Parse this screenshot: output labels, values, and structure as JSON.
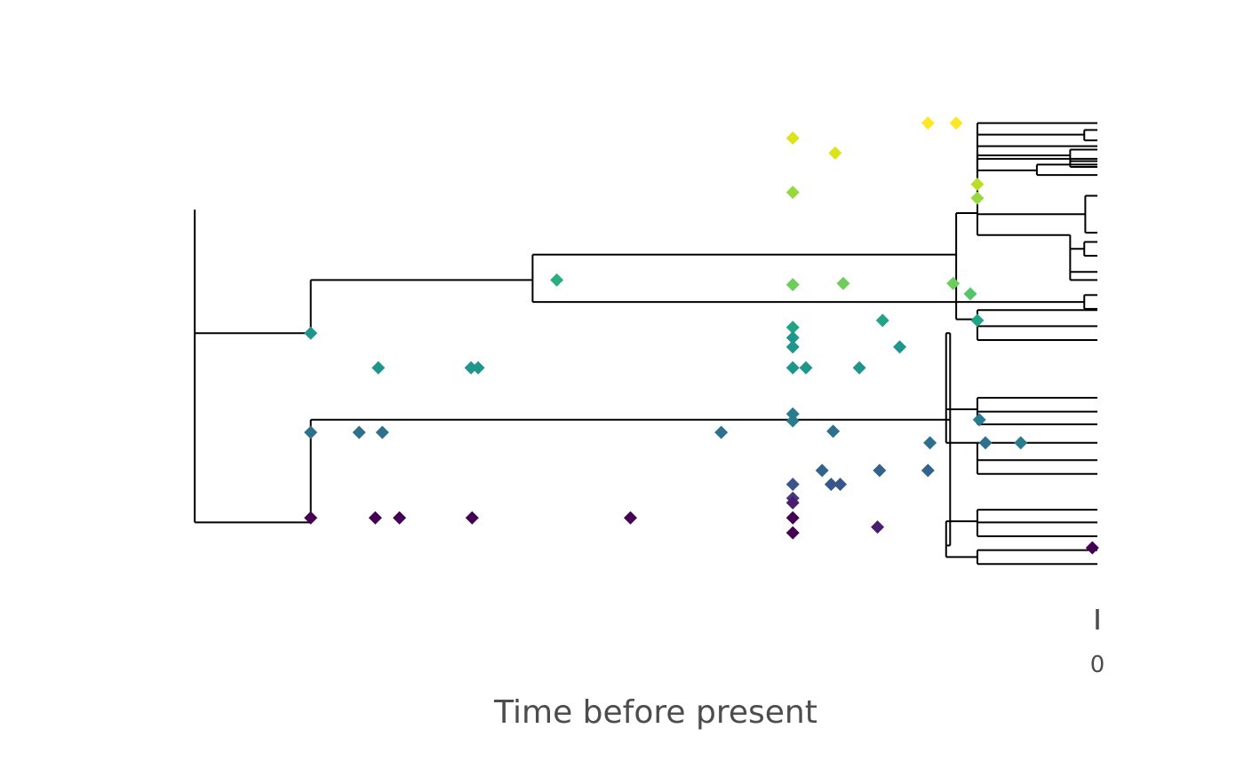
{
  "chart_data": {
    "type": "scatter",
    "subtype": "phylogenetic tree with event markers",
    "xlabel": "Time before present",
    "x_tick_labels": [
      "0"
    ],
    "x_ticks": [
      0
    ],
    "xlim": [
      -89.5,
      1.4
    ],
    "grid": false,
    "legend": "none",
    "tips_at_x": 0,
    "tree_nodes": [
      {
        "id": "root",
        "x": -89.5,
        "y": 32.3
      },
      {
        "id": "A",
        "x": -78.0,
        "y": 21.6
      },
      {
        "id": "B",
        "x": -78.0,
        "y": 5.2
      },
      {
        "id": "C",
        "x": -56.0,
        "y": 26.2
      },
      {
        "id": "D",
        "x": -14.6,
        "y": 14.1
      },
      {
        "id": "E",
        "x": -15.0,
        "y": 21.6
      },
      {
        "id": "F",
        "x": -11.9,
        "y": 15.0
      },
      {
        "id": "G",
        "x": -11.9,
        "y": 12.1
      },
      {
        "id": "H",
        "x": -15.0,
        "y": 3.2
      },
      {
        "id": "I",
        "x": -11.9,
        "y": 5.3
      },
      {
        "id": "J",
        "x": -11.9,
        "y": 2.2
      },
      {
        "id": "K",
        "x": -14.0,
        "y": 28.4
      },
      {
        "id": "L",
        "x": -11.9,
        "y": 32.0
      },
      {
        "id": "M",
        "x": -11.9,
        "y": 37.2
      },
      {
        "id": "N",
        "x": -2.7,
        "y": 37.0
      },
      {
        "id": "O",
        "x": -6.0,
        "y": 35.7
      },
      {
        "id": "P",
        "x": -1.3,
        "y": 38.8
      },
      {
        "id": "Q",
        "x": -1.3,
        "y": 34.8
      },
      {
        "id": "R",
        "x": -11.9,
        "y": 33.5
      },
      {
        "id": "S",
        "x": -1.2,
        "y": 31.9
      },
      {
        "id": "T",
        "x": -2.7,
        "y": 30.1
      },
      {
        "id": "U",
        "x": -2.7,
        "y": 28.0
      },
      {
        "id": "V",
        "x": -1.3,
        "y": 28.9
      },
      {
        "id": "W",
        "x": -11.9,
        "y": 22.8
      },
      {
        "id": "X",
        "x": -1.3,
        "y": 24.3
      }
    ],
    "tree_edges": [
      [
        "root",
        "A"
      ],
      [
        "root",
        "B"
      ],
      [
        "A",
        "C"
      ],
      [
        "C",
        "K"
      ],
      [
        "C",
        "X"
      ],
      [
        "K",
        "L"
      ],
      [
        "K",
        "W"
      ],
      [
        "L",
        "M"
      ],
      [
        "L",
        "R"
      ],
      [
        "L",
        "S"
      ],
      [
        "L",
        "T"
      ],
      [
        "M",
        "tip1"
      ],
      [
        "M",
        "tip2"
      ],
      [
        "M",
        "P"
      ],
      [
        "M",
        "O"
      ],
      [
        "P",
        "tip3"
      ],
      [
        "P",
        "tip4"
      ],
      [
        "O",
        "tip5"
      ],
      [
        "O",
        "tip6"
      ],
      [
        "R",
        "N"
      ],
      [
        "R",
        "tip8"
      ],
      [
        "N",
        "tip9"
      ],
      [
        "N",
        "tip10"
      ],
      [
        "N",
        "tip11"
      ],
      [
        "S",
        "tip12"
      ],
      [
        "S",
        "tip13"
      ],
      [
        "T",
        "V"
      ],
      [
        "T",
        "tip14"
      ],
      [
        "T",
        "tip15"
      ],
      [
        "V",
        "tip16"
      ],
      [
        "V",
        "tip17"
      ],
      [
        "W",
        "tip18"
      ],
      [
        "W",
        "tip19"
      ],
      [
        "W",
        "tip20"
      ],
      [
        "X",
        "tip21"
      ],
      [
        "X",
        "tip22"
      ],
      [
        "B",
        "D"
      ],
      [
        "D",
        "E"
      ],
      [
        "D",
        "H"
      ],
      [
        "E",
        "F"
      ],
      [
        "E",
        "G"
      ],
      [
        "F",
        "tip23"
      ],
      [
        "F",
        "tip24"
      ],
      [
        "F",
        "tip25"
      ],
      [
        "G",
        "tip26"
      ],
      [
        "G",
        "tip27"
      ],
      [
        "G",
        "tip28"
      ],
      [
        "H",
        "I"
      ],
      [
        "H",
        "J"
      ],
      [
        "I",
        "tip29"
      ],
      [
        "I",
        "tip30"
      ],
      [
        "I",
        "tip31"
      ],
      [
        "J",
        "tip32"
      ],
      [
        "J",
        "tip33"
      ]
    ],
    "tips": [
      {
        "id": "tip1",
        "y": 39.8
      },
      {
        "id": "tip2",
        "y": 37.8
      },
      {
        "id": "tip3",
        "y": 39.2
      },
      {
        "id": "tip4",
        "y": 38.3
      },
      {
        "id": "tip5",
        "y": 36.2
      },
      {
        "id": "tip6",
        "y": 35.3
      },
      {
        "id": "tip8",
        "y": 36.7
      },
      {
        "id": "tip9",
        "y": 37.5
      },
      {
        "id": "tip10",
        "y": 36.5
      },
      {
        "id": "tip11",
        "y": 36.0
      },
      {
        "id": "tip12",
        "y": 33.5
      },
      {
        "id": "tip13",
        "y": 30.3
      },
      {
        "id": "tip14",
        "y": 26.9
      },
      {
        "id": "tip15",
        "y": 26.2
      },
      {
        "id": "tip16",
        "y": 29.5
      },
      {
        "id": "tip17",
        "y": 28.3
      },
      {
        "id": "tip18",
        "y": 23.6
      },
      {
        "id": "tip19",
        "y": 22.2
      },
      {
        "id": "tip20",
        "y": 21.0
      },
      {
        "id": "tip21",
        "y": 24.9
      },
      {
        "id": "tip22",
        "y": 23.7
      },
      {
        "id": "tip23",
        "y": 16.0
      },
      {
        "id": "tip24",
        "y": 14.8
      },
      {
        "id": "tip25",
        "y": 13.7
      },
      {
        "id": "tip26",
        "y": 12.1
      },
      {
        "id": "tip27",
        "y": 10.6
      },
      {
        "id": "tip28",
        "y": 9.4
      },
      {
        "id": "tip29",
        "y": 6.3
      },
      {
        "id": "tip30",
        "y": 5.2
      },
      {
        "id": "tip31",
        "y": 4.0
      },
      {
        "id": "tip32",
        "y": 2.8
      },
      {
        "id": "tip33",
        "y": 1.6
      }
    ],
    "events": [
      {
        "x": -14.0,
        "y": 39.8,
        "color": "#fde725"
      },
      {
        "x": -16.8,
        "y": 39.8,
        "color": "#fde725"
      },
      {
        "x": -30.2,
        "y": 38.5,
        "color": "#dce319"
      },
      {
        "x": -26.0,
        "y": 37.2,
        "color": "#dce319"
      },
      {
        "x": -11.9,
        "y": 34.5,
        "color": "#b8de29"
      },
      {
        "x": -11.9,
        "y": 33.3,
        "color": "#95d840"
      },
      {
        "x": -30.2,
        "y": 33.8,
        "color": "#95d840"
      },
      {
        "x": -30.2,
        "y": 25.8,
        "color": "#6dcd59"
      },
      {
        "x": -25.2,
        "y": 25.9,
        "color": "#6dcd59"
      },
      {
        "x": -14.3,
        "y": 25.9,
        "color": "#6dcd59"
      },
      {
        "x": -12.6,
        "y": 25.0,
        "color": "#55c667"
      },
      {
        "x": -53.6,
        "y": 26.2,
        "color": "#29af7f"
      },
      {
        "x": -11.9,
        "y": 22.7,
        "color": "#20a387"
      },
      {
        "x": -21.3,
        "y": 22.7,
        "color": "#20a387"
      },
      {
        "x": -30.2,
        "y": 22.1,
        "color": "#20a387"
      },
      {
        "x": -30.2,
        "y": 21.2,
        "color": "#1f968b"
      },
      {
        "x": -30.2,
        "y": 20.4,
        "color": "#1f968b"
      },
      {
        "x": -19.6,
        "y": 20.4,
        "color": "#1f968b"
      },
      {
        "x": -78.0,
        "y": 21.6,
        "color": "#1f968b"
      },
      {
        "x": -71.3,
        "y": 18.6,
        "color": "#1f968b"
      },
      {
        "x": -62.1,
        "y": 18.6,
        "color": "#1f968b"
      },
      {
        "x": -61.4,
        "y": 18.6,
        "color": "#1f968b"
      },
      {
        "x": -30.2,
        "y": 18.6,
        "color": "#1f968b"
      },
      {
        "x": -28.9,
        "y": 18.6,
        "color": "#1f968b"
      },
      {
        "x": -23.6,
        "y": 18.6,
        "color": "#1f968b"
      },
      {
        "x": -30.2,
        "y": 14.6,
        "color": "#287c8e"
      },
      {
        "x": -30.2,
        "y": 14.0,
        "color": "#287c8e"
      },
      {
        "x": -11.7,
        "y": 14.1,
        "color": "#287c8e"
      },
      {
        "x": -26.2,
        "y": 13.1,
        "color": "#2d708e"
      },
      {
        "x": -78.0,
        "y": 13.0,
        "color": "#2d708e"
      },
      {
        "x": -73.2,
        "y": 13.0,
        "color": "#2d708e"
      },
      {
        "x": -70.9,
        "y": 13.0,
        "color": "#2d708e"
      },
      {
        "x": -37.3,
        "y": 13.0,
        "color": "#2d708e"
      },
      {
        "x": -16.6,
        "y": 12.1,
        "color": "#2d708e"
      },
      {
        "x": -11.1,
        "y": 12.1,
        "color": "#2d708e"
      },
      {
        "x": -7.6,
        "y": 12.1,
        "color": "#287c8e"
      },
      {
        "x": -27.3,
        "y": 9.7,
        "color": "#33638d"
      },
      {
        "x": -21.6,
        "y": 9.7,
        "color": "#33638d"
      },
      {
        "x": -16.8,
        "y": 9.7,
        "color": "#33638d"
      },
      {
        "x": -30.2,
        "y": 8.5,
        "color": "#39568c"
      },
      {
        "x": -26.4,
        "y": 8.5,
        "color": "#39568c"
      },
      {
        "x": -25.5,
        "y": 8.5,
        "color": "#39568c"
      },
      {
        "x": -30.2,
        "y": 7.3,
        "color": "#453781"
      },
      {
        "x": -30.2,
        "y": 6.9,
        "color": "#481f70"
      },
      {
        "x": -21.8,
        "y": 4.8,
        "color": "#481f70"
      },
      {
        "x": -78.0,
        "y": 5.6,
        "color": "#440154"
      },
      {
        "x": -71.6,
        "y": 5.6,
        "color": "#440154"
      },
      {
        "x": -69.2,
        "y": 5.6,
        "color": "#440154"
      },
      {
        "x": -62.0,
        "y": 5.6,
        "color": "#440154"
      },
      {
        "x": -46.3,
        "y": 5.6,
        "color": "#440154"
      },
      {
        "x": -30.2,
        "y": 5.6,
        "color": "#440154"
      },
      {
        "x": -30.2,
        "y": 4.3,
        "color": "#440154"
      },
      {
        "x": -0.5,
        "y": 3.0,
        "color": "#440154"
      }
    ]
  }
}
